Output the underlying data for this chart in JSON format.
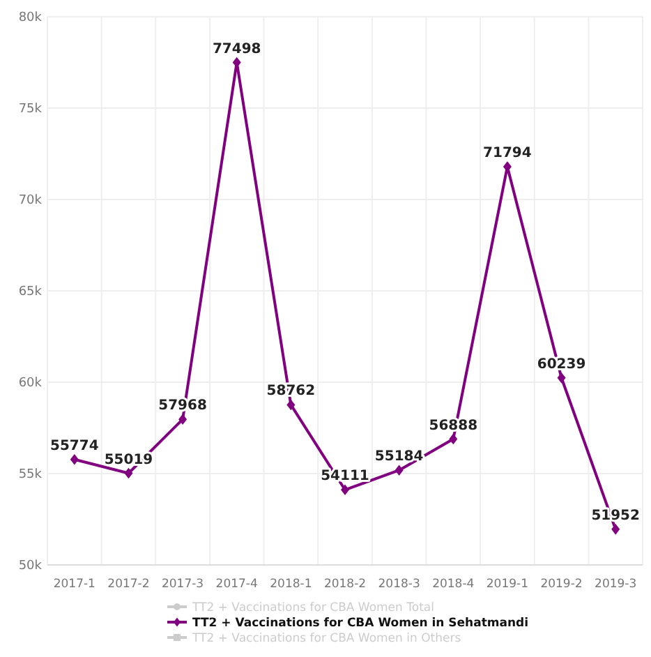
{
  "chart_data": {
    "type": "line",
    "categories": [
      "2017-1",
      "2017-2",
      "2017-3",
      "2017-4",
      "2018-1",
      "2018-2",
      "2018-3",
      "2018-4",
      "2019-1",
      "2019-2",
      "2019-3"
    ],
    "series": [
      {
        "name": "TT2 + Vaccinations for CBA Women Total",
        "color": "#cccccc",
        "marker": "circle",
        "values": [
          null,
          null,
          null,
          null,
          null,
          null,
          null,
          null,
          null,
          null,
          null
        ]
      },
      {
        "name": "TT2 + Vaccinations for CBA Women in Sehatmandi",
        "color": "#800080",
        "marker": "diamond",
        "values": [
          55774,
          55019,
          57968,
          77498,
          58762,
          54111,
          55184,
          56888,
          71794,
          60239,
          51952
        ]
      },
      {
        "name": "TT2 + Vaccinations for CBA Women in Others",
        "color": "#cccccc",
        "marker": "square",
        "values": [
          null,
          null,
          null,
          null,
          null,
          null,
          null,
          null,
          null,
          null,
          null
        ]
      }
    ],
    "ylim": [
      50000,
      80000
    ],
    "yticks": [
      {
        "value": 50000,
        "label": "50k"
      },
      {
        "value": 55000,
        "label": "55k"
      },
      {
        "value": 60000,
        "label": "60k"
      },
      {
        "value": 65000,
        "label": "65k"
      },
      {
        "value": 70000,
        "label": "70k"
      },
      {
        "value": 75000,
        "label": "75k"
      },
      {
        "value": 80000,
        "label": "80k"
      }
    ],
    "grid": true,
    "legend": "bottom",
    "data_labels": true,
    "line_style": "solid"
  }
}
